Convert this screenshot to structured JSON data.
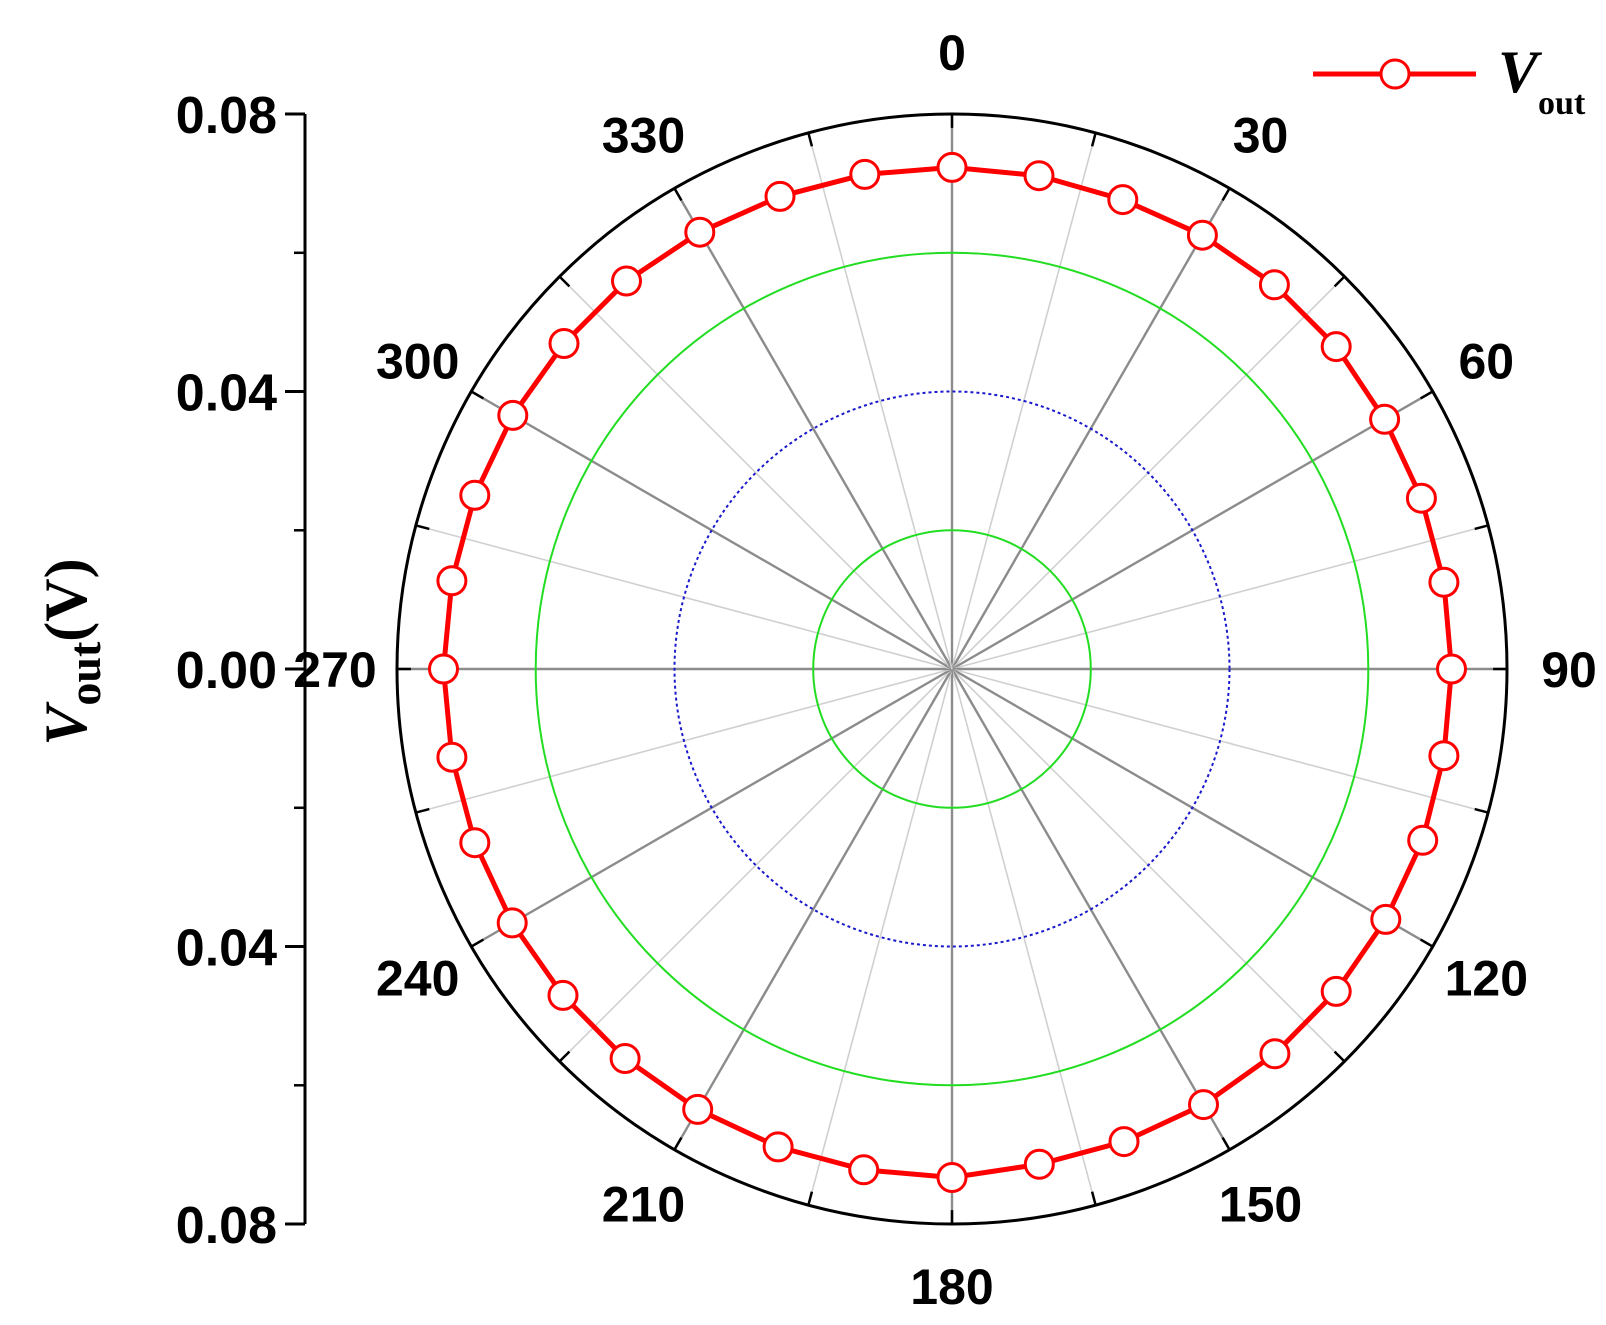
{
  "chart_data": {
    "type": "polar-line",
    "radial_axis": {
      "label": {
        "italic": "V",
        "sub": "out",
        "unit": "(V)"
      },
      "range": [
        0,
        0.08
      ],
      "tick_labels": [
        "0.08",
        "0.04",
        "0.00",
        "0.04",
        "0.08"
      ],
      "tick_values": [
        0.08,
        0.04,
        0.0,
        0.04,
        0.08
      ],
      "gridlines": [
        {
          "r": 0.02,
          "style": "solid",
          "color": "#22dd22"
        },
        {
          "r": 0.04,
          "style": "dotted",
          "color": "#1a1acc"
        },
        {
          "r": 0.06,
          "style": "solid",
          "color": "#22dd22"
        }
      ]
    },
    "angular_axis": {
      "direction": "clockwise",
      "zero": "top",
      "tick_labels": [
        "0",
        "30",
        "60",
        "90",
        "120",
        "150",
        "180",
        "210",
        "240",
        "270",
        "300",
        "330"
      ],
      "tick_values": [
        0,
        30,
        60,
        90,
        120,
        150,
        180,
        210,
        240,
        270,
        300,
        330
      ],
      "minor_step": 15
    },
    "series": [
      {
        "name": {
          "italic": "V",
          "sub": "out"
        },
        "color": "#ff0000",
        "marker": "open-circle",
        "theta": [
          0,
          10,
          20,
          30,
          40,
          50,
          60,
          70,
          80,
          90,
          100,
          110,
          120,
          130,
          140,
          150,
          160,
          170,
          180,
          190,
          200,
          210,
          220,
          230,
          240,
          250,
          260,
          270,
          280,
          290,
          300,
          310,
          320,
          330,
          340,
          350
        ],
        "r": [
          0.0723,
          0.0722,
          0.072,
          0.0722,
          0.0723,
          0.0723,
          0.072,
          0.072,
          0.072,
          0.072,
          0.072,
          0.0722,
          0.0722,
          0.0723,
          0.0724,
          0.0725,
          0.0725,
          0.0725,
          0.0733,
          0.0733,
          0.0733,
          0.0733,
          0.0733,
          0.0732,
          0.0732,
          0.0732,
          0.0732,
          0.0733,
          0.0732,
          0.0732,
          0.0731,
          0.073,
          0.073,
          0.0727,
          0.0725,
          0.0724
        ]
      }
    ],
    "legend": {
      "position": "top-right"
    },
    "grid": true
  }
}
